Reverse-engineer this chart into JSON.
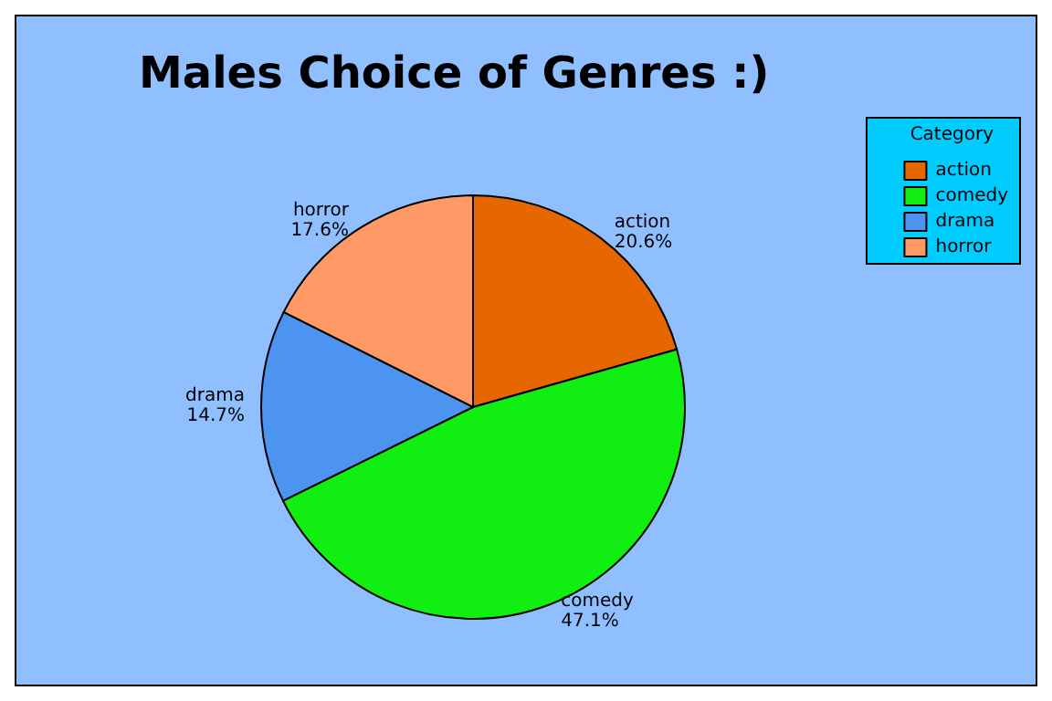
{
  "chart_data": {
    "type": "pie",
    "title": "Males Choice of Genres :)",
    "categories": [
      "action",
      "comedy",
      "drama",
      "horror"
    ],
    "values": [
      20.6,
      47.1,
      14.7,
      17.6
    ],
    "colors": [
      "#e66600",
      "#11ee11",
      "#4d94f0",
      "#ff9966"
    ],
    "value_labels": [
      "20.6%",
      "47.1%",
      "14.7%",
      "17.6%"
    ],
    "legend": "top right",
    "legend_title": "Category"
  }
}
